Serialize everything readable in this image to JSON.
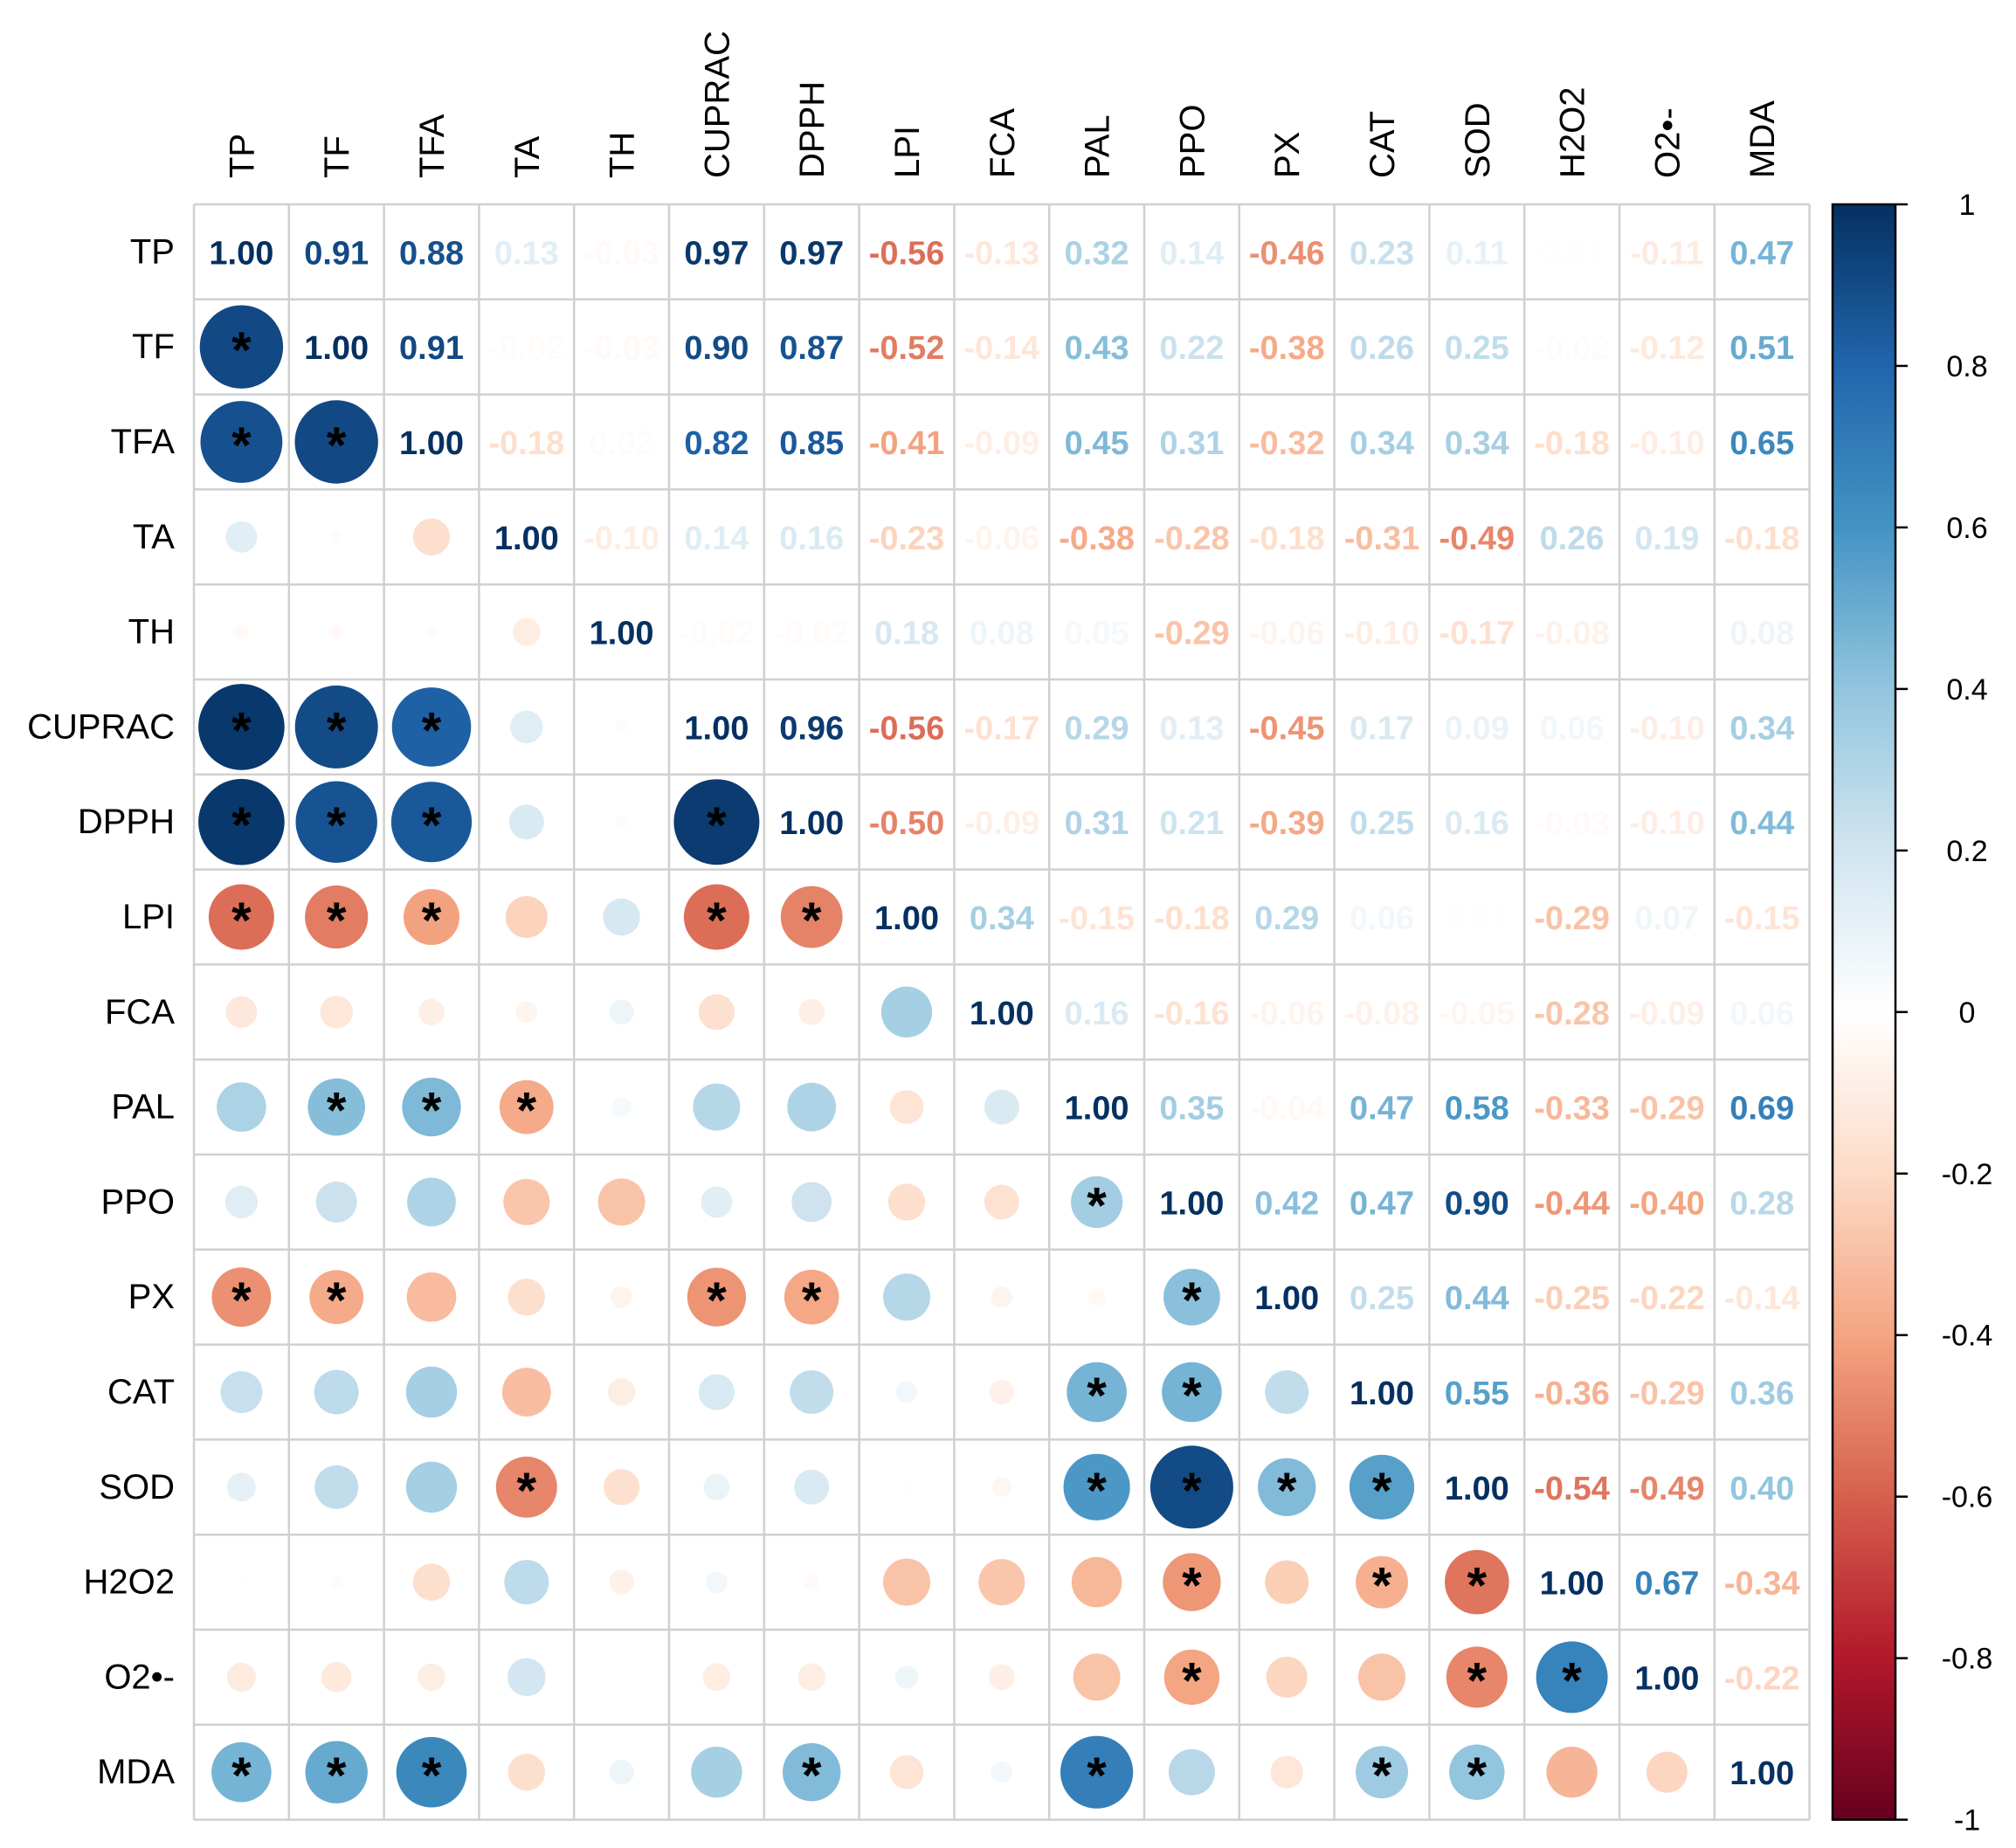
{
  "chart_data": {
    "type": "heatmap",
    "style": "corrplot-mixed",
    "lower": "circle",
    "upper": "number",
    "variables": [
      "TP",
      "TF",
      "TFA",
      "TA",
      "TH",
      "CUPRAC",
      "DPPH",
      "LPI",
      "FCA",
      "PAL",
      "PPO",
      "PX",
      "CAT",
      "SOD",
      "H2O2",
      "O2•-",
      "MDA"
    ],
    "matrix": [
      [
        1.0,
        0.91,
        0.88,
        0.13,
        -0.03,
        0.97,
        0.97,
        -0.56,
        -0.13,
        0.32,
        0.14,
        -0.46,
        0.23,
        0.11,
        0.01,
        -0.11,
        0.47
      ],
      [
        0.91,
        1.0,
        0.91,
        -0.02,
        -0.03,
        0.9,
        0.87,
        -0.52,
        -0.14,
        0.43,
        0.22,
        -0.38,
        0.26,
        0.25,
        -0.02,
        -0.12,
        0.51
      ],
      [
        0.88,
        0.91,
        1.0,
        -0.18,
        0.02,
        0.82,
        0.85,
        -0.41,
        -0.09,
        0.45,
        0.31,
        -0.32,
        0.34,
        0.34,
        -0.18,
        -0.1,
        0.65
      ],
      [
        0.13,
        -0.02,
        -0.18,
        1.0,
        -0.1,
        0.14,
        0.16,
        -0.23,
        -0.06,
        -0.38,
        -0.28,
        -0.18,
        -0.31,
        -0.49,
        0.26,
        0.19,
        -0.18
      ],
      [
        -0.03,
        -0.03,
        0.02,
        -0.1,
        1.0,
        -0.02,
        -0.02,
        0.18,
        0.08,
        0.05,
        -0.29,
        -0.06,
        -0.1,
        -0.17,
        -0.08,
        0.0,
        0.08
      ],
      [
        0.97,
        0.9,
        0.82,
        0.14,
        -0.02,
        1.0,
        0.96,
        -0.56,
        -0.17,
        0.29,
        0.13,
        -0.45,
        0.17,
        0.09,
        0.06,
        -0.1,
        0.34
      ],
      [
        0.97,
        0.87,
        0.85,
        0.16,
        -0.02,
        0.96,
        1.0,
        -0.5,
        -0.09,
        0.31,
        0.21,
        -0.39,
        0.25,
        0.16,
        -0.03,
        -0.1,
        0.44
      ],
      [
        -0.56,
        -0.52,
        -0.41,
        -0.23,
        0.18,
        -0.56,
        -0.5,
        1.0,
        0.34,
        -0.15,
        -0.18,
        0.29,
        0.06,
        0.01,
        -0.29,
        0.07,
        -0.15
      ],
      [
        -0.13,
        -0.14,
        -0.09,
        -0.06,
        0.08,
        -0.17,
        -0.09,
        0.34,
        1.0,
        0.16,
        -0.16,
        -0.06,
        -0.08,
        -0.05,
        -0.28,
        -0.09,
        0.06
      ],
      [
        0.32,
        0.43,
        0.45,
        -0.38,
        0.05,
        0.29,
        0.31,
        -0.15,
        0.16,
        1.0,
        0.35,
        -0.04,
        0.47,
        0.58,
        -0.33,
        -0.29,
        0.69
      ],
      [
        0.14,
        0.22,
        0.31,
        -0.28,
        -0.29,
        0.13,
        0.21,
        -0.18,
        -0.16,
        0.35,
        1.0,
        0.42,
        0.47,
        0.9,
        -0.44,
        -0.4,
        0.28
      ],
      [
        -0.46,
        -0.38,
        -0.32,
        -0.18,
        -0.06,
        -0.45,
        -0.39,
        0.29,
        -0.06,
        -0.04,
        0.42,
        1.0,
        0.25,
        0.44,
        -0.25,
        -0.22,
        -0.14
      ],
      [
        0.23,
        0.26,
        0.34,
        -0.31,
        -0.1,
        0.17,
        0.25,
        0.06,
        -0.08,
        0.47,
        0.47,
        0.25,
        1.0,
        0.55,
        -0.36,
        -0.29,
        0.36
      ],
      [
        0.11,
        0.25,
        0.34,
        -0.49,
        -0.17,
        0.09,
        0.16,
        0.01,
        -0.05,
        0.58,
        0.9,
        0.44,
        0.55,
        1.0,
        -0.54,
        -0.49,
        0.4
      ],
      [
        0.01,
        -0.02,
        -0.18,
        0.26,
        -0.08,
        0.06,
        -0.03,
        -0.29,
        -0.28,
        -0.33,
        -0.44,
        -0.25,
        -0.36,
        -0.54,
        1.0,
        0.67,
        -0.34
      ],
      [
        -0.11,
        -0.12,
        -0.1,
        0.19,
        0.0,
        -0.1,
        -0.1,
        0.07,
        -0.09,
        -0.29,
        -0.4,
        -0.22,
        -0.29,
        -0.49,
        0.67,
        1.0,
        -0.22
      ],
      [
        0.47,
        0.51,
        0.65,
        -0.18,
        0.08,
        0.34,
        0.44,
        -0.15,
        0.06,
        0.69,
        0.28,
        -0.14,
        0.36,
        0.4,
        -0.34,
        -0.22,
        1.0
      ]
    ],
    "significance_marker": "*",
    "significant_cells": [
      [
        1,
        0
      ],
      [
        2,
        0
      ],
      [
        2,
        1
      ],
      [
        5,
        0
      ],
      [
        5,
        1
      ],
      [
        5,
        2
      ],
      [
        6,
        0
      ],
      [
        6,
        1
      ],
      [
        6,
        2
      ],
      [
        6,
        5
      ],
      [
        7,
        0
      ],
      [
        7,
        1
      ],
      [
        7,
        2
      ],
      [
        7,
        5
      ],
      [
        7,
        6
      ],
      [
        9,
        1
      ],
      [
        9,
        2
      ],
      [
        9,
        3
      ],
      [
        10,
        9
      ],
      [
        11,
        0
      ],
      [
        11,
        1
      ],
      [
        11,
        5
      ],
      [
        11,
        6
      ],
      [
        11,
        10
      ],
      [
        12,
        9
      ],
      [
        12,
        10
      ],
      [
        13,
        3
      ],
      [
        13,
        9
      ],
      [
        13,
        10
      ],
      [
        13,
        11
      ],
      [
        13,
        12
      ],
      [
        14,
        10
      ],
      [
        14,
        12
      ],
      [
        14,
        13
      ],
      [
        15,
        10
      ],
      [
        15,
        13
      ],
      [
        15,
        14
      ],
      [
        16,
        0
      ],
      [
        16,
        1
      ],
      [
        16,
        2
      ],
      [
        16,
        6
      ],
      [
        16,
        9
      ],
      [
        16,
        12
      ],
      [
        16,
        13
      ]
    ],
    "colorbar": {
      "range": [
        -1,
        1
      ],
      "ticks": [
        "1",
        "0.8",
        "0.6",
        "0.4",
        "0.2",
        "0",
        "-0.2",
        "-0.4",
        "-0.6",
        "-0.8",
        "-1"
      ],
      "colors": [
        "#67001F",
        "#B2182B",
        "#D6604D",
        "#F4A582",
        "#FDDBC7",
        "#FFFFFF",
        "#D1E5F0",
        "#92C5DE",
        "#4393C3",
        "#2166AC",
        "#053061"
      ]
    }
  }
}
